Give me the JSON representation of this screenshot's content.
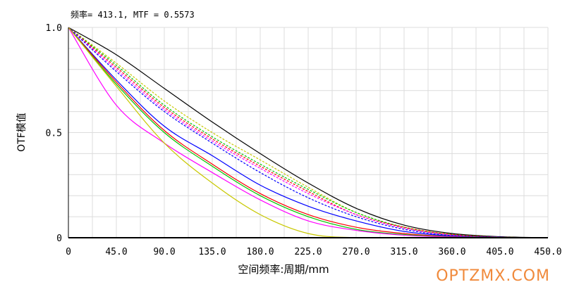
{
  "readout": "频率= 413.1, MTF = 0.5573",
  "watermark": "OPTZMX.COM",
  "chart_data": {
    "type": "line",
    "title": "",
    "xlabel": "空间频率:周期/mm",
    "ylabel": "OTF模值",
    "xlim": [
      0,
      450
    ],
    "ylim": [
      0,
      1
    ],
    "grid": true,
    "x_ticks": [
      0,
      45,
      90,
      135,
      180,
      225,
      270,
      315,
      360,
      405,
      450
    ],
    "x_tick_labels": [
      "0",
      "45.0",
      "90.0",
      "135.0",
      "180.0",
      "225.0",
      "270.0",
      "315.0",
      "360.0",
      "405.0",
      "450.0"
    ],
    "y_ticks": [
      0,
      0.5,
      1.0
    ],
    "y_tick_labels": [
      "0",
      "0.5",
      "1.0"
    ],
    "x": [
      0,
      45,
      90,
      135,
      180,
      225,
      270,
      315,
      360,
      405,
      450
    ],
    "series": [
      {
        "color": "#000000",
        "dash": false,
        "values": [
          1.0,
          0.87,
          0.71,
          0.55,
          0.4,
          0.26,
          0.14,
          0.06,
          0.02,
          0.005,
          0.0
        ]
      },
      {
        "color": "#c8c800",
        "dash": true,
        "values": [
          1.0,
          0.83,
          0.65,
          0.5,
          0.37,
          0.24,
          0.12,
          0.05,
          0.015,
          0.003,
          0.0
        ]
      },
      {
        "color": "#00c800",
        "dash": true,
        "values": [
          1.0,
          0.82,
          0.63,
          0.48,
          0.35,
          0.23,
          0.12,
          0.05,
          0.015,
          0.003,
          0.0
        ]
      },
      {
        "color": "#ff0000",
        "dash": true,
        "values": [
          1.0,
          0.81,
          0.62,
          0.47,
          0.34,
          0.22,
          0.11,
          0.05,
          0.015,
          0.003,
          0.0
        ]
      },
      {
        "color": "#ff00ff",
        "dash": true,
        "values": [
          1.0,
          0.8,
          0.61,
          0.46,
          0.33,
          0.21,
          0.11,
          0.045,
          0.012,
          0.002,
          0.0
        ]
      },
      {
        "color": "#0000ff",
        "dash": true,
        "values": [
          1.0,
          0.79,
          0.6,
          0.45,
          0.31,
          0.19,
          0.1,
          0.04,
          0.01,
          0.002,
          0.0
        ]
      },
      {
        "color": "#0000ff",
        "dash": false,
        "values": [
          1.0,
          0.75,
          0.53,
          0.39,
          0.25,
          0.15,
          0.08,
          0.03,
          0.008,
          0.002,
          0.0
        ]
      },
      {
        "color": "#ff0000",
        "dash": false,
        "values": [
          1.0,
          0.74,
          0.51,
          0.35,
          0.21,
          0.11,
          0.05,
          0.02,
          0.005,
          0.001,
          0.0
        ]
      },
      {
        "color": "#00c800",
        "dash": false,
        "values": [
          1.0,
          0.73,
          0.5,
          0.34,
          0.2,
          0.1,
          0.04,
          0.015,
          0.004,
          0.001,
          0.0
        ]
      },
      {
        "color": "#ff00ff",
        "dash": false,
        "values": [
          1.0,
          0.63,
          0.45,
          0.31,
          0.18,
          0.08,
          0.035,
          0.012,
          0.003,
          0.001,
          0.0
        ]
      },
      {
        "color": "#c8c800",
        "dash": false,
        "values": [
          1.0,
          0.72,
          0.45,
          0.26,
          0.11,
          0.02,
          0.0,
          0.0,
          0.0,
          0.0,
          0.0
        ]
      }
    ]
  }
}
